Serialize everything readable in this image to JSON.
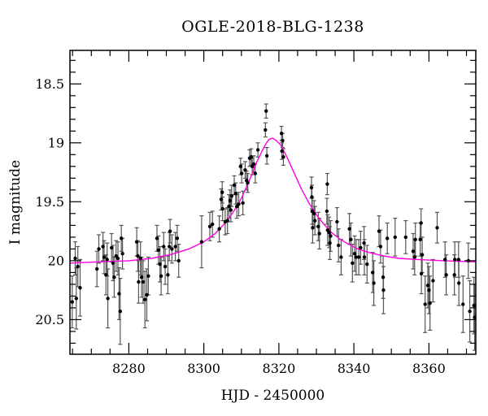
{
  "chart_data": {
    "type": "scatter",
    "title": "OGLE-2018-BLG-1238",
    "xlabel": "HJD - 2450000",
    "ylabel": "I magnitude",
    "xlim": [
      8264.3,
      8372.5
    ],
    "ylim": [
      18.215,
      20.794
    ],
    "y_axis_inverted": true,
    "grid": false,
    "legend": "none",
    "xticks_major": [
      8280,
      8300,
      8320,
      8340,
      8360
    ],
    "xtick_labels": [
      "8280",
      "8300",
      "8320",
      "8340",
      "8360"
    ],
    "xticks_minor_step": 5,
    "yticks_major": [
      18.5,
      19.0,
      19.5,
      20.0,
      20.5
    ],
    "ytick_labels": [
      "18.5",
      "19",
      "19.5",
      "20",
      "20.5"
    ],
    "yticks_minor_step": 0.1,
    "model_curve": {
      "name": "microlensing-model",
      "color": "#ff00e0",
      "points": [
        [
          8264.3,
          20.02
        ],
        [
          8272,
          20.01
        ],
        [
          8280,
          20.0
        ],
        [
          8286,
          19.98
        ],
        [
          8291,
          19.95
        ],
        [
          8296,
          19.9
        ],
        [
          8300,
          19.84
        ],
        [
          8303,
          19.77
        ],
        [
          8306,
          19.67
        ],
        [
          8308,
          19.58
        ],
        [
          8310,
          19.47
        ],
        [
          8312,
          19.33
        ],
        [
          8314,
          19.17
        ],
        [
          8315.5,
          19.07
        ],
        [
          8316.5,
          19.01
        ],
        [
          8317.4,
          18.97
        ],
        [
          8318.3,
          18.96
        ],
        [
          8319.3,
          18.98
        ],
        [
          8320.5,
          19.02
        ],
        [
          8322,
          19.11
        ],
        [
          8324,
          19.25
        ],
        [
          8326,
          19.39
        ],
        [
          8328,
          19.51
        ],
        [
          8330,
          19.61
        ],
        [
          8332,
          19.69
        ],
        [
          8334,
          19.76
        ],
        [
          8336,
          19.81
        ],
        [
          8338,
          19.85
        ],
        [
          8341,
          19.9
        ],
        [
          8344,
          19.93
        ],
        [
          8348,
          19.96
        ],
        [
          8352,
          19.98
        ],
        [
          8357,
          19.99
        ],
        [
          8364,
          20.0
        ],
        [
          8372.5,
          20.01
        ]
      ]
    },
    "points": {
      "name": "I-band-observations",
      "color": "#000000",
      "error_bar_color": "#555555",
      "data": [
        [
          8264.9,
          20.35,
          0.22
        ],
        [
          8265.7,
          19.98,
          0.14
        ],
        [
          8266.0,
          20.32,
          0.26
        ],
        [
          8266.4,
          20.05,
          0.17
        ],
        [
          8267.0,
          20.23,
          0.24
        ],
        [
          8271.5,
          20.07,
          0.15
        ],
        [
          8272.0,
          19.9,
          0.12
        ],
        [
          8273.1,
          19.88,
          0.12
        ],
        [
          8273.4,
          19.97,
          0.14
        ],
        [
          8273.9,
          20.12,
          0.17
        ],
        [
          8274.2,
          19.99,
          0.14
        ],
        [
          8274.4,
          20.32,
          0.25
        ],
        [
          8275.4,
          19.89,
          0.12
        ],
        [
          8275.8,
          20.02,
          0.15
        ],
        [
          8276.1,
          20.14,
          0.17
        ],
        [
          8276.6,
          19.96,
          0.13
        ],
        [
          8277.1,
          19.98,
          0.14
        ],
        [
          8277.4,
          20.28,
          0.22
        ],
        [
          8277.7,
          20.43,
          0.28
        ],
        [
          8278.0,
          19.81,
          0.11
        ],
        [
          8278.3,
          19.94,
          0.13
        ],
        [
          8282.1,
          19.84,
          0.12
        ],
        [
          8282.4,
          19.96,
          0.13
        ],
        [
          8282.6,
          20.18,
          0.18
        ],
        [
          8283.1,
          19.98,
          0.14
        ],
        [
          8283.4,
          20.14,
          0.17
        ],
        [
          8283.8,
          20.18,
          0.18
        ],
        [
          8284.3,
          20.33,
          0.24
        ],
        [
          8284.8,
          20.29,
          0.22
        ],
        [
          8285.2,
          20.13,
          0.16
        ],
        [
          8287.5,
          19.81,
          0.11
        ],
        [
          8287.9,
          19.91,
          0.12
        ],
        [
          8288.3,
          20.03,
          0.15
        ],
        [
          8288.6,
          20.13,
          0.16
        ],
        [
          8289.3,
          19.88,
          0.12
        ],
        [
          8289.7,
          20.05,
          0.15
        ],
        [
          8290.4,
          20.12,
          0.16
        ],
        [
          8290.8,
          19.88,
          0.12
        ],
        [
          8291.0,
          19.75,
          0.1
        ],
        [
          8291.5,
          19.9,
          0.12
        ],
        [
          8292.4,
          19.88,
          0.12
        ],
        [
          8292.9,
          19.81,
          0.11
        ],
        [
          8293.3,
          20.0,
          0.14
        ],
        [
          8299.4,
          19.84,
          0.22
        ],
        [
          8301.6,
          19.71,
          0.12
        ],
        [
          8302.3,
          19.69,
          0.11
        ],
        [
          8304.1,
          19.73,
          0.11
        ],
        [
          8304.6,
          19.48,
          0.09
        ],
        [
          8304.9,
          19.42,
          0.09
        ],
        [
          8305.0,
          19.56,
          0.1
        ],
        [
          8305.7,
          19.67,
          0.11
        ],
        [
          8306.3,
          19.66,
          0.11
        ],
        [
          8306.7,
          19.54,
          0.1
        ],
        [
          8307.0,
          19.49,
          0.09
        ],
        [
          8307.2,
          19.57,
          0.1
        ],
        [
          8307.4,
          19.45,
          0.09
        ],
        [
          8308.1,
          19.36,
          0.08
        ],
        [
          8308.5,
          19.43,
          0.09
        ],
        [
          8308.8,
          19.54,
          0.1
        ],
        [
          8309.3,
          19.52,
          0.1
        ],
        [
          8309.8,
          19.2,
          0.07
        ],
        [
          8310.1,
          19.26,
          0.08
        ],
        [
          8310.4,
          19.51,
          0.1
        ],
        [
          8311.0,
          19.23,
          0.07
        ],
        [
          8311.4,
          19.32,
          0.08
        ],
        [
          8311.7,
          19.34,
          0.08
        ],
        [
          8312.2,
          19.13,
          0.07
        ],
        [
          8312.6,
          19.12,
          0.07
        ],
        [
          8312.9,
          19.2,
          0.07
        ],
        [
          8313.3,
          19.18,
          0.07
        ],
        [
          8313.7,
          19.26,
          0.08
        ],
        [
          8314.4,
          19.06,
          0.06
        ],
        [
          8316.4,
          18.89,
          0.06
        ],
        [
          8316.6,
          18.73,
          0.06
        ],
        [
          8316.8,
          19.11,
          0.07
        ],
        [
          8320.7,
          18.92,
          0.06
        ],
        [
          8320.8,
          19.07,
          0.07
        ],
        [
          8321.0,
          18.98,
          0.06
        ],
        [
          8321.2,
          19.12,
          0.07
        ],
        [
          8328.7,
          19.38,
          0.09
        ],
        [
          8328.8,
          19.46,
          0.1
        ],
        [
          8328.9,
          19.58,
          0.11
        ],
        [
          8329.0,
          19.72,
          0.13
        ],
        [
          8329.4,
          19.6,
          0.11
        ],
        [
          8329.6,
          19.66,
          0.12
        ],
        [
          8330.5,
          19.71,
          0.12
        ],
        [
          8330.8,
          19.77,
          0.13
        ],
        [
          8332.8,
          19.58,
          0.11
        ],
        [
          8332.9,
          19.35,
          0.09
        ],
        [
          8333.0,
          19.74,
          0.13
        ],
        [
          8333.4,
          19.76,
          0.13
        ],
        [
          8333.6,
          19.85,
          0.14
        ],
        [
          8333.8,
          19.79,
          0.13
        ],
        [
          8335.5,
          19.67,
          0.12
        ],
        [
          8335.9,
          19.87,
          0.14
        ],
        [
          8336.6,
          19.97,
          0.15
        ],
        [
          8338.8,
          19.73,
          0.13
        ],
        [
          8339.2,
          19.82,
          0.14
        ],
        [
          8339.6,
          20.02,
          0.16
        ],
        [
          8340.2,
          19.94,
          0.15
        ],
        [
          8340.6,
          19.97,
          0.15
        ],
        [
          8341.3,
          19.97,
          0.15
        ],
        [
          8341.8,
          19.89,
          0.14
        ],
        [
          8342.7,
          19.85,
          0.14
        ],
        [
          8342.8,
          19.97,
          0.15
        ],
        [
          8343.5,
          20.03,
          0.16
        ],
        [
          8345.0,
          20.1,
          0.17
        ],
        [
          8345.3,
          20.19,
          0.19
        ],
        [
          8346.7,
          19.75,
          0.13
        ],
        [
          8347.1,
          19.88,
          0.14
        ],
        [
          8347.8,
          20.14,
          0.18
        ],
        [
          8347.9,
          20.25,
          0.2
        ],
        [
          8348.9,
          19.81,
          0.13
        ],
        [
          8351.0,
          19.8,
          0.16
        ],
        [
          8353.8,
          19.8,
          0.14
        ],
        [
          8355.8,
          19.92,
          0.15
        ],
        [
          8356.2,
          19.97,
          0.15
        ],
        [
          8356.4,
          19.82,
          0.14
        ],
        [
          8357.7,
          19.82,
          0.14
        ],
        [
          8357.9,
          19.68,
          0.12
        ],
        [
          8358.0,
          20.11,
          0.17
        ],
        [
          8358.2,
          19.95,
          0.15
        ],
        [
          8359.0,
          20.37,
          0.24
        ],
        [
          8359.7,
          20.21,
          0.19
        ],
        [
          8360.0,
          20.25,
          0.2
        ],
        [
          8360.3,
          20.36,
          0.23
        ],
        [
          8361.1,
          20.17,
          0.18
        ],
        [
          8362.2,
          19.72,
          0.13
        ],
        [
          8364.3,
          19.99,
          0.15
        ],
        [
          8364.6,
          20.12,
          0.17
        ],
        [
          8366.8,
          20.12,
          0.17
        ],
        [
          8366.9,
          19.99,
          0.15
        ],
        [
          8367.9,
          19.99,
          0.15
        ],
        [
          8368.0,
          20.19,
          0.19
        ],
        [
          8369.1,
          20.37,
          0.24
        ],
        [
          8370.5,
          20.0,
          0.15
        ],
        [
          8370.9,
          20.43,
          0.26
        ],
        [
          8372.0,
          20.38,
          0.24
        ],
        [
          8372.2,
          20.48,
          0.28
        ]
      ]
    }
  }
}
